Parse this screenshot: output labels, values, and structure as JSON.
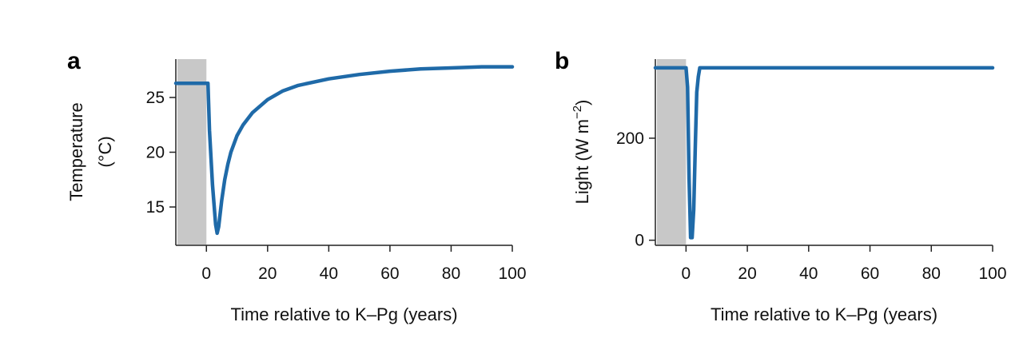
{
  "chart_data": [
    {
      "panel": "a",
      "type": "line",
      "xlabel": "Time relative to K–Pg (years)",
      "ylabel_lines": [
        "Temperature",
        "(°C)"
      ],
      "xlim": [
        -10,
        100
      ],
      "ylim": [
        11.5,
        28.5
      ],
      "xticks": [
        0,
        20,
        40,
        60,
        80,
        100
      ],
      "yticks": [
        15,
        20,
        25
      ],
      "ytick_labels": [
        "15",
        "20",
        "25"
      ],
      "shaded_x": [
        -10,
        0
      ],
      "series": [
        {
          "x": [
            -10,
            0,
            0.5,
            1,
            2,
            3,
            3.5,
            4,
            5,
            6,
            7,
            8,
            10,
            12,
            15,
            20,
            25,
            30,
            40,
            50,
            60,
            70,
            80,
            90,
            100
          ],
          "y": [
            26.3,
            26.3,
            26.3,
            22.0,
            17.0,
            13.4,
            12.6,
            13.2,
            15.6,
            17.5,
            18.9,
            20.0,
            21.5,
            22.5,
            23.6,
            24.8,
            25.6,
            26.1,
            26.7,
            27.1,
            27.4,
            27.6,
            27.7,
            27.8,
            27.8
          ]
        }
      ]
    },
    {
      "panel": "b",
      "type": "line",
      "xlabel": "Time relative to K–Pg (years)",
      "ylabel_main": "Light (W m",
      "ylabel_sup": "−2",
      "ylabel_close": ")",
      "xlim": [
        -10,
        100
      ],
      "ylim": [
        -10,
        355
      ],
      "xticks": [
        0,
        20,
        40,
        60,
        80,
        100
      ],
      "yticks": [
        0,
        200
      ],
      "ytick_labels": [
        "0",
        "200"
      ],
      "shaded_x": [
        -10,
        0
      ],
      "series": [
        {
          "x": [
            -10,
            0,
            0.5,
            1,
            1.5,
            2,
            2.5,
            3,
            3.5,
            4,
            4.5,
            5,
            100
          ],
          "y": [
            338,
            338,
            300,
            120,
            5,
            5,
            60,
            180,
            290,
            320,
            338,
            338,
            338
          ]
        }
      ]
    }
  ],
  "colors": {
    "line": "#1f6aa8",
    "shade": "#c8c8c8",
    "axis": "#222222"
  }
}
